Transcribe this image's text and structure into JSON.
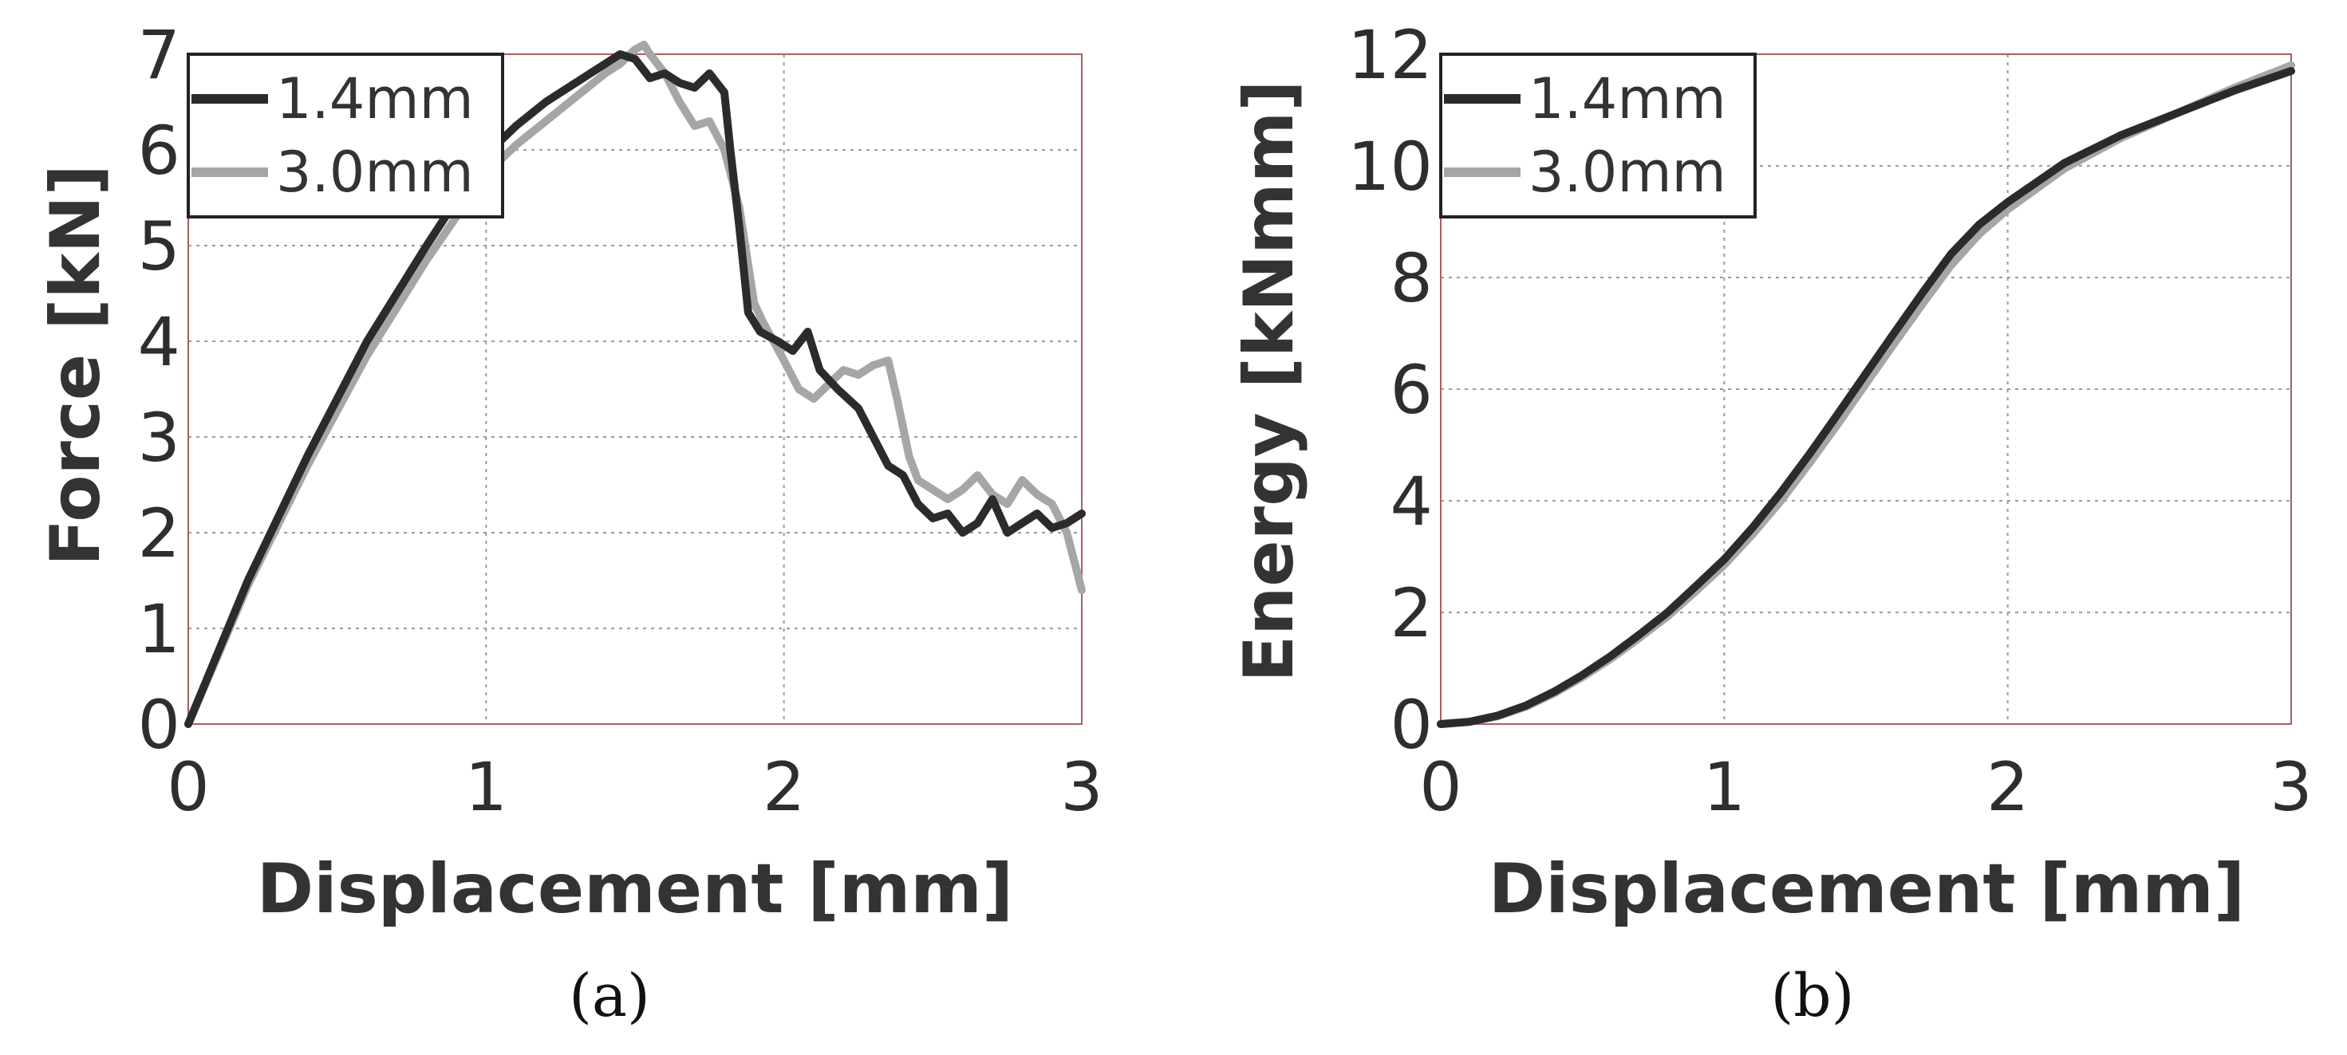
{
  "chart_data": [
    {
      "type": "line",
      "caption": "(a)",
      "xlabel": "Displacement [mm]",
      "ylabel": "Force [kN]",
      "xlim": [
        0,
        3
      ],
      "ylim": [
        0,
        7
      ],
      "xticks": [
        "0",
        "1",
        "2",
        "3"
      ],
      "yticks": [
        "0",
        "1",
        "2",
        "3",
        "4",
        "5",
        "6",
        "7"
      ],
      "grid": true,
      "legend_position": "top-left",
      "series": [
        {
          "name": "1.4mm",
          "color": "#2b2b2b",
          "x": [
            0,
            0.1,
            0.2,
            0.4,
            0.6,
            0.8,
            1.0,
            1.1,
            1.2,
            1.3,
            1.4,
            1.45,
            1.5,
            1.55,
            1.6,
            1.65,
            1.7,
            1.75,
            1.8,
            1.82,
            1.85,
            1.88,
            1.92,
            1.98,
            2.03,
            2.08,
            2.12,
            2.18,
            2.25,
            2.3,
            2.35,
            2.4,
            2.45,
            2.5,
            2.55,
            2.6,
            2.65,
            2.7,
            2.75,
            2.8,
            2.85,
            2.9,
            2.95,
            3.0
          ],
          "y": [
            0,
            0.75,
            1.5,
            2.8,
            4.0,
            5.0,
            5.95,
            6.25,
            6.5,
            6.7,
            6.9,
            7.0,
            6.95,
            6.75,
            6.8,
            6.7,
            6.65,
            6.8,
            6.6,
            6.0,
            5.2,
            4.3,
            4.1,
            4.0,
            3.9,
            4.1,
            3.7,
            3.5,
            3.3,
            3.0,
            2.7,
            2.6,
            2.3,
            2.15,
            2.2,
            2.0,
            2.1,
            2.35,
            2.0,
            2.1,
            2.2,
            2.05,
            2.1,
            2.2
          ]
        },
        {
          "name": "3.0mm",
          "color": "#a6a6a6",
          "x": [
            0,
            0.1,
            0.2,
            0.4,
            0.6,
            0.8,
            1.0,
            1.1,
            1.2,
            1.3,
            1.4,
            1.45,
            1.5,
            1.53,
            1.55,
            1.6,
            1.65,
            1.7,
            1.75,
            1.8,
            1.85,
            1.88,
            1.9,
            1.93,
            2.0,
            2.05,
            2.1,
            2.15,
            2.2,
            2.25,
            2.3,
            2.35,
            2.38,
            2.42,
            2.45,
            2.5,
            2.55,
            2.6,
            2.65,
            2.7,
            2.75,
            2.8,
            2.85,
            2.9,
            2.95,
            3.0
          ],
          "y": [
            0,
            0.72,
            1.45,
            2.7,
            3.85,
            4.85,
            5.75,
            6.05,
            6.3,
            6.55,
            6.8,
            6.9,
            7.05,
            7.1,
            7.0,
            6.8,
            6.5,
            6.25,
            6.3,
            6.0,
            5.4,
            4.8,
            4.4,
            4.2,
            3.8,
            3.5,
            3.4,
            3.55,
            3.7,
            3.65,
            3.75,
            3.8,
            3.4,
            2.8,
            2.55,
            2.45,
            2.35,
            2.45,
            2.6,
            2.4,
            2.3,
            2.55,
            2.4,
            2.3,
            2.0,
            1.4
          ]
        }
      ]
    },
    {
      "type": "line",
      "caption": "(b)",
      "xlabel": "Displacement [mm]",
      "ylabel": "Energy [kNmm]",
      "xlim": [
        0,
        3
      ],
      "ylim": [
        0,
        12
      ],
      "xticks": [
        "0",
        "1",
        "2",
        "3"
      ],
      "yticks": [
        "0",
        "2",
        "4",
        "6",
        "8",
        "10",
        "12"
      ],
      "grid": true,
      "legend_position": "top-left",
      "series": [
        {
          "name": "1.4mm",
          "color": "#2b2b2b",
          "x": [
            0,
            0.1,
            0.2,
            0.3,
            0.4,
            0.5,
            0.6,
            0.7,
            0.8,
            0.9,
            1.0,
            1.1,
            1.2,
            1.3,
            1.4,
            1.5,
            1.6,
            1.7,
            1.8,
            1.9,
            2.0,
            2.2,
            2.4,
            2.6,
            2.8,
            3.0
          ],
          "y": [
            0.0,
            0.04,
            0.15,
            0.33,
            0.58,
            0.88,
            1.22,
            1.6,
            2.0,
            2.47,
            2.95,
            3.52,
            4.15,
            4.83,
            5.55,
            6.28,
            7.01,
            7.73,
            8.42,
            8.95,
            9.35,
            10.05,
            10.55,
            10.95,
            11.35,
            11.7
          ]
        },
        {
          "name": "3.0mm",
          "color": "#a6a6a6",
          "x": [
            0,
            0.1,
            0.2,
            0.3,
            0.4,
            0.5,
            0.6,
            0.7,
            0.8,
            0.9,
            1.0,
            1.1,
            1.2,
            1.3,
            1.4,
            1.5,
            1.6,
            1.7,
            1.8,
            1.9,
            2.0,
            2.2,
            2.4,
            2.6,
            2.8,
            3.0
          ],
          "y": [
            0.0,
            0.04,
            0.14,
            0.31,
            0.55,
            0.84,
            1.17,
            1.54,
            1.93,
            2.38,
            2.85,
            3.4,
            4.0,
            4.67,
            5.37,
            6.1,
            6.82,
            7.53,
            8.22,
            8.78,
            9.22,
            9.95,
            10.5,
            10.95,
            11.4,
            11.8
          ]
        }
      ]
    }
  ]
}
